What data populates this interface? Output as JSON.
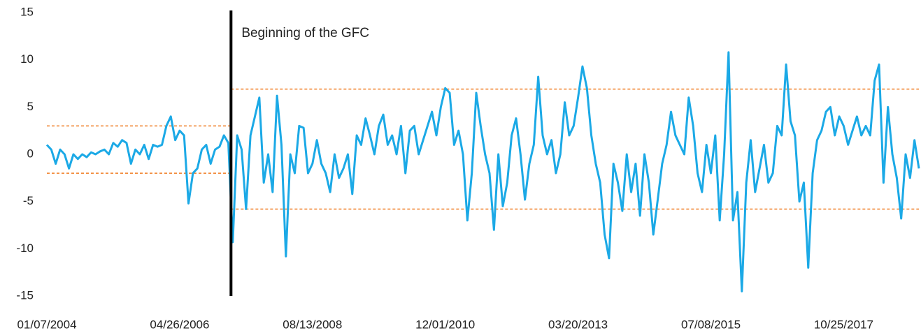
{
  "chart_data": {
    "type": "line",
    "categories": [
      "01/07/2004",
      null,
      null,
      null,
      null,
      null,
      null,
      null,
      null,
      null,
      null,
      null,
      null,
      null,
      null,
      null,
      null,
      null,
      null,
      null,
      null,
      null,
      null,
      null,
      null,
      null,
      null,
      null,
      null,
      null,
      "04/26/2006",
      null,
      null,
      null,
      null,
      null,
      null,
      null,
      null,
      null,
      null,
      null,
      null,
      null,
      null,
      null,
      null,
      null,
      null,
      null,
      null,
      null,
      null,
      null,
      null,
      null,
      null,
      null,
      null,
      null,
      "08/13/2008",
      null,
      null,
      null,
      null,
      null,
      null,
      null,
      null,
      null,
      null,
      null,
      null,
      null,
      null,
      null,
      null,
      null,
      null,
      null,
      null,
      null,
      null,
      null,
      null,
      null,
      null,
      null,
      null,
      null,
      "12/01/2010",
      null,
      null,
      null,
      null,
      null,
      null,
      null,
      null,
      null,
      null,
      null,
      null,
      null,
      null,
      null,
      null,
      null,
      null,
      null,
      null,
      null,
      null,
      null,
      null,
      null,
      null,
      null,
      null,
      null,
      "03/20/2013",
      null,
      null,
      null,
      null,
      null,
      null,
      null,
      null,
      null,
      null,
      null,
      null,
      null,
      null,
      null,
      null,
      null,
      null,
      null,
      null,
      null,
      null,
      null,
      null,
      null,
      null,
      null,
      null,
      null,
      "07/08/2015",
      null,
      null,
      null,
      null,
      null,
      null,
      null,
      null,
      null,
      null,
      null,
      null,
      null,
      null,
      null,
      null,
      null,
      null,
      null,
      null,
      null,
      null,
      null,
      null,
      null,
      null,
      null,
      null,
      null,
      "10/25/2017",
      null,
      null,
      null,
      null,
      null,
      null,
      null,
      null,
      null,
      null,
      null,
      null,
      null,
      null,
      null,
      null,
      null
    ],
    "values": [
      1,
      0.5,
      -1,
      0.5,
      0,
      -1.5,
      0,
      -0.5,
      0,
      -0.3,
      0.2,
      0,
      0.3,
      0.5,
      0,
      1.2,
      0.8,
      1.5,
      1.2,
      -1,
      0.5,
      0,
      1,
      -0.5,
      1,
      0.8,
      1,
      3,
      4,
      1.5,
      2.5,
      2,
      -5.2,
      -2,
      -1.5,
      0.5,
      1,
      -1,
      0.5,
      0.8,
      2,
      1.2,
      -9.3,
      2,
      0.5,
      -5.8,
      2,
      4,
      6,
      -3,
      0,
      -4,
      6.2,
      1,
      -10.8,
      0,
      -2,
      3,
      2.8,
      -2,
      -1,
      1.5,
      -1,
      -2,
      -4,
      0,
      -2.5,
      -1.5,
      0,
      -4.2,
      2,
      1,
      3.8,
      2,
      0,
      3,
      4.2,
      1,
      2,
      0,
      3,
      -2,
      2.5,
      3,
      0,
      1.5,
      3,
      4.5,
      2,
      5,
      7,
      6.5,
      1,
      2.5,
      0,
      -7,
      -2,
      6.5,
      3,
      0,
      -2,
      -8,
      0,
      -5.5,
      -3,
      2,
      3.8,
      0,
      -4.8,
      -1,
      1,
      8.2,
      2,
      0,
      1.5,
      -2,
      0,
      5.5,
      2,
      3,
      6,
      9.3,
      7,
      2,
      -1,
      -3,
      -8.5,
      -11,
      -1,
      -3,
      -6,
      0,
      -4,
      -1,
      -6.5,
      0,
      -3,
      -8.5,
      -4.8,
      -1,
      1,
      4.5,
      2,
      1,
      0,
      6,
      3,
      -2,
      -4,
      1,
      -2,
      2,
      -7,
      0,
      10.8,
      -7,
      -4,
      -14.5,
      -3,
      1.5,
      -4,
      -1.5,
      1,
      -3,
      -2,
      3,
      2,
      9.5,
      3.5,
      2,
      -5,
      -3,
      -12,
      -2,
      1.5,
      2.5,
      4.5,
      5,
      2,
      4,
      3,
      1,
      2.5,
      4,
      2,
      3,
      2,
      7.8,
      9.5,
      -3,
      5,
      0,
      -2.5,
      -6.8,
      0,
      -2.5,
      1.5,
      -1.5
    ],
    "color": "#1ba9e6",
    "ylim": [
      -15,
      15
    ],
    "yticks": [
      -15,
      -10,
      -5,
      0,
      5,
      10,
      15
    ],
    "grid": false,
    "annotations": [
      {
        "text": "Beginning of the GFC",
        "x": 41.6
      }
    ],
    "reference_lines": [
      {
        "y": 3,
        "from": 0,
        "to": 41.6
      },
      {
        "y": -2,
        "from": 0,
        "to": 41.6
      },
      {
        "y": 6.9,
        "from": 41.6,
        "to": 197
      },
      {
        "y": -5.8,
        "from": 41.6,
        "to": 197
      }
    ],
    "reference_color": "#f07c22"
  }
}
